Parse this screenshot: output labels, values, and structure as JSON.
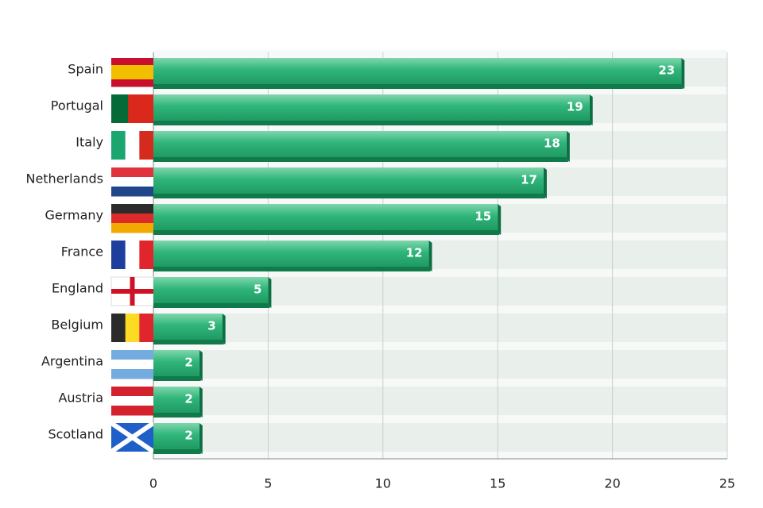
{
  "chart_data": {
    "type": "bar",
    "orientation": "horizontal",
    "categories": [
      "Spain",
      "Portugal",
      "Italy",
      "Netherlands",
      "Germany",
      "France",
      "England",
      "Belgium",
      "Argentina",
      "Austria",
      "Scotland"
    ],
    "values": [
      23,
      19,
      18,
      17,
      15,
      12,
      5,
      3,
      2,
      2,
      2
    ],
    "color": "#2fb57a",
    "xlim": [
      0,
      25
    ],
    "xticks": [
      0,
      5,
      10,
      15,
      20,
      25
    ],
    "grid": true
  }
}
